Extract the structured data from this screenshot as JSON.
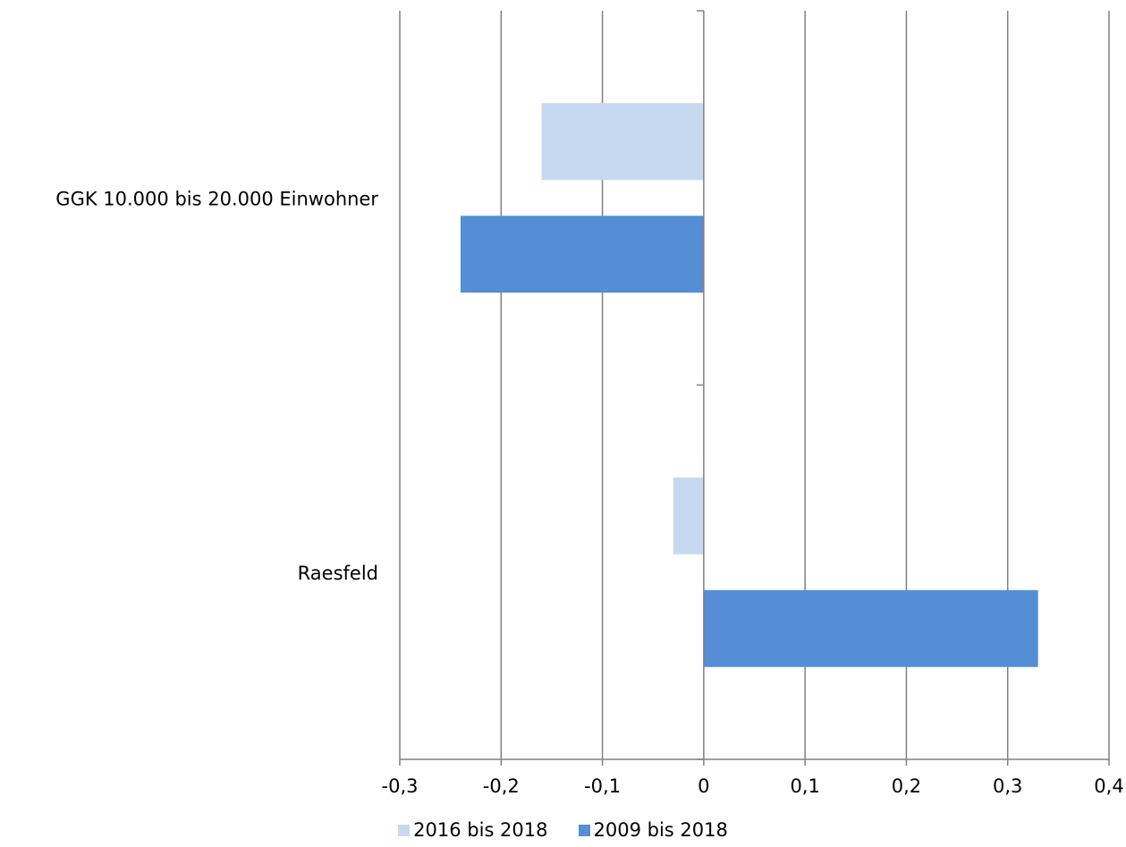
{
  "chart_data": {
    "type": "bar",
    "orientation": "horizontal",
    "categories": [
      "GGK 10.000 bis 20.000 Einwohner",
      "Raesfeld"
    ],
    "series": [
      {
        "name": "2016 bis 2018",
        "values": [
          -0.16,
          -0.03
        ],
        "color": "#c6d9f1"
      },
      {
        "name": "2009 bis 2018",
        "values": [
          -0.24,
          0.33
        ],
        "color": "#558ed5"
      }
    ],
    "xlim": [
      -0.3,
      0.4
    ],
    "xticks": [
      "-0,3",
      "-0,2",
      "-0,1",
      "0",
      "0,1",
      "0,2",
      "0,3",
      "0,4"
    ],
    "xtick_values": [
      -0.3,
      -0.2,
      -0.1,
      0,
      0.1,
      0.2,
      0.3,
      0.4
    ],
    "grid": "vertical",
    "legend_position": "bottom"
  },
  "colors": {
    "gridline": "#808080",
    "axis": "#808080"
  }
}
